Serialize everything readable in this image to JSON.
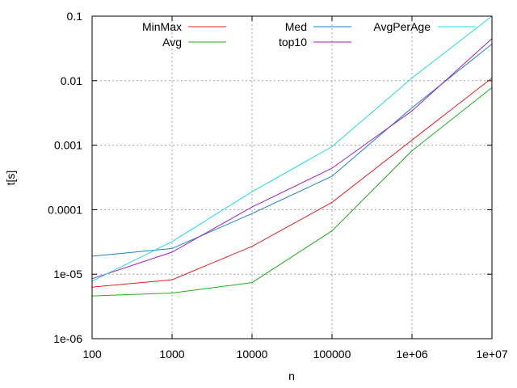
{
  "chart_data": {
    "type": "line",
    "title": "",
    "xlabel": "n",
    "ylabel": "t[s]",
    "x_scale": "log",
    "y_scale": "log",
    "xlim": [
      100,
      10000000
    ],
    "ylim": [
      1e-06,
      0.1
    ],
    "grid": true,
    "legend_position": "top",
    "x_ticks": [
      {
        "value": 100,
        "label": "100"
      },
      {
        "value": 1000,
        "label": "1000"
      },
      {
        "value": 10000,
        "label": "10000"
      },
      {
        "value": 100000,
        "label": "100000"
      },
      {
        "value": 1000000,
        "label": "1e+06"
      },
      {
        "value": 10000000,
        "label": "1e+07"
      }
    ],
    "y_ticks": [
      {
        "value": 1e-06,
        "label": "1e-06"
      },
      {
        "value": 1e-05,
        "label": "1e-05"
      },
      {
        "value": 0.0001,
        "label": "0.0001"
      },
      {
        "value": 0.001,
        "label": "0.001"
      },
      {
        "value": 0.01,
        "label": "0.01"
      },
      {
        "value": 0.1,
        "label": "0.1"
      }
    ],
    "x": [
      100,
      1000,
      10000,
      100000,
      1000000,
      10000000
    ],
    "series": [
      {
        "name": "MinMax",
        "color": "#e02020",
        "values": [
          6.3e-06,
          8.2e-06,
          2.7e-05,
          0.00013,
          0.0012,
          0.011
        ]
      },
      {
        "name": "Avg",
        "color": "#20b020",
        "values": [
          4.6e-06,
          5.1e-06,
          7.4e-06,
          4.7e-05,
          0.00082,
          0.0078
        ]
      },
      {
        "name": "Med",
        "color": "#2080c0",
        "values": [
          1.9e-05,
          2.5e-05,
          8.7e-05,
          0.00033,
          0.0038,
          0.037
        ]
      },
      {
        "name": "top10",
        "color": "#a020c0",
        "values": [
          8.5e-06,
          2.2e-05,
          0.00011,
          0.00044,
          0.0034,
          0.045
        ]
      },
      {
        "name": "AvgPerAge",
        "color": "#20d8e0",
        "values": [
          7.8e-06,
          3.2e-05,
          0.00019,
          0.00095,
          0.011,
          0.1
        ]
      }
    ]
  }
}
